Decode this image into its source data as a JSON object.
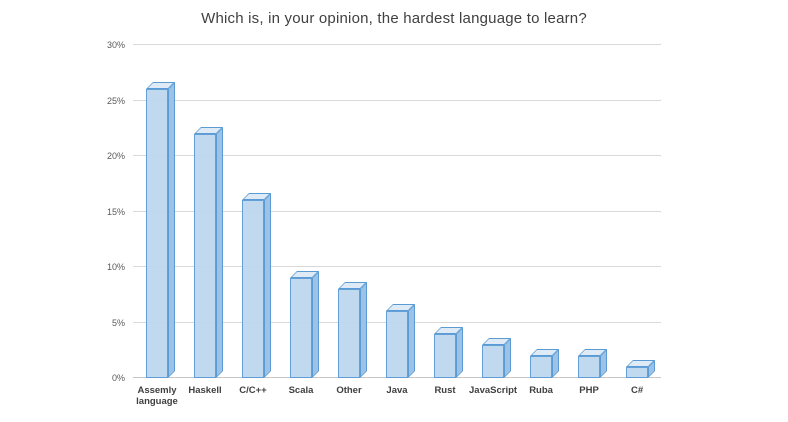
{
  "chart_data": {
    "type": "bar",
    "style": "3d-column",
    "title": "Which is, in your opinion, the hardest language to learn?",
    "categories": [
      "Assemly language",
      "Haskell",
      "C/C++",
      "Scala",
      "Other",
      "Java",
      "Rust",
      "JavaScript",
      "Ruba",
      "PHP",
      "C#"
    ],
    "values": [
      26,
      22,
      16,
      9,
      8,
      6,
      4,
      3,
      2,
      2,
      1
    ],
    "unit": "%",
    "xlabel": "",
    "ylabel": "",
    "ylim": [
      0,
      30
    ],
    "ytick_step": 5,
    "ytick_labels": [
      "0%",
      "5%",
      "10%",
      "15%",
      "20%",
      "25%",
      "30%"
    ],
    "grid": true,
    "legend": "none",
    "colors": {
      "bar_fill": "#bdd7ee",
      "bar_top": "#deebf7",
      "bar_side": "#9cc2e5",
      "bar_border": "#5b9bd5",
      "gridline": "#d9d9d9",
      "axis_text": "#595959",
      "title_text": "#404040"
    }
  }
}
